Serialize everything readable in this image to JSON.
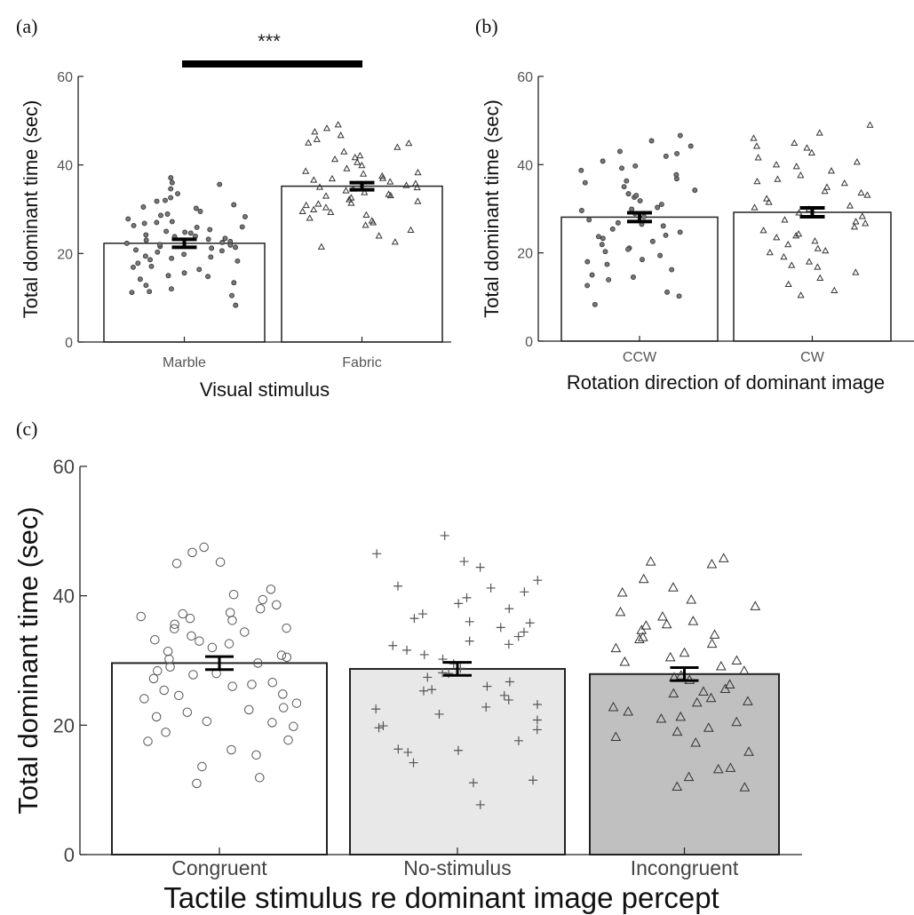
{
  "chart_data": [
    {
      "panel_label": "(a)",
      "type": "bar",
      "categories": [
        "Marble",
        "Fabric"
      ],
      "values": [
        22.3,
        35.2
      ],
      "errors": [
        0.9,
        0.8
      ],
      "xlabel": "Visual stimulus",
      "ylabel": "Total dominant time (sec)",
      "ylim": [
        0,
        60
      ],
      "yticks": [
        0,
        20,
        40,
        60
      ],
      "significance": "***",
      "bar_colors": [
        "#ffffff",
        "#ffffff"
      ],
      "markers": [
        "dot",
        "triangle"
      ],
      "points": [
        [
          10.5,
          8.3,
          11.2,
          12.0,
          13.4,
          14.2,
          15.0,
          15.6,
          16.4,
          17.1,
          17.8,
          18.3,
          18.9,
          19.4,
          19.8,
          20.3,
          20.8,
          21.2,
          21.6,
          22.0,
          22.3,
          22.7,
          23.0,
          23.4,
          23.8,
          24.2,
          24.6,
          25.0,
          25.4,
          25.9,
          26.3,
          26.8,
          27.2,
          27.8,
          28.3,
          28.9,
          29.5,
          30.2,
          31.0,
          31.8,
          32.6,
          33.5,
          34.6,
          35.6,
          36.0,
          37.1,
          11.4,
          12.8,
          14.8,
          16.9,
          18.6,
          19.2,
          20.6,
          21.4,
          21.9,
          22.5,
          23.2,
          23.9,
          24.8,
          26.0,
          27.0,
          28.6,
          30.5,
          32.0
        ],
        [
          21.5,
          22.6,
          24.0,
          25.3,
          26.4,
          27.4,
          28.0,
          28.7,
          29.3,
          29.9,
          30.4,
          30.9,
          31.4,
          31.8,
          32.2,
          32.6,
          33.0,
          33.4,
          33.8,
          34.2,
          34.6,
          35.0,
          35.4,
          35.8,
          36.2,
          36.6,
          37.0,
          37.5,
          38.0,
          38.6,
          39.2,
          39.9,
          40.6,
          41.3,
          42.1,
          43.0,
          44.0,
          44.9,
          45.8,
          46.7,
          47.5,
          48.3,
          49.1,
          27.0,
          29.5,
          31.2,
          33.1,
          34.9,
          36.9,
          38.3,
          41.7,
          45.0
        ]
      ]
    },
    {
      "panel_label": "(b)",
      "type": "bar",
      "categories": [
        "CCW",
        "CW"
      ],
      "values": [
        28.1,
        29.2
      ],
      "errors": [
        1.0,
        1.0
      ],
      "xlabel": "Rotation direction of dominant image",
      "ylabel": "Total dominant time (sec)",
      "ylim": [
        0,
        60
      ],
      "yticks": [
        0,
        20,
        40,
        60
      ],
      "bar_colors": [
        "#ffffff",
        "#ffffff"
      ],
      "markers": [
        "dot",
        "triangle"
      ],
      "points": [
        [
          8.3,
          10.2,
          11.1,
          12.6,
          13.9,
          15.0,
          16.2,
          17.4,
          18.5,
          19.4,
          20.3,
          21.1,
          21.9,
          22.6,
          23.3,
          24.0,
          24.7,
          25.4,
          26.1,
          26.8,
          27.5,
          28.2,
          28.9,
          29.6,
          30.3,
          31.0,
          31.8,
          32.6,
          33.4,
          34.2,
          35.0,
          35.9,
          36.8,
          37.7,
          38.7,
          39.7,
          40.8,
          41.9,
          43.0,
          44.2,
          45.4,
          46.6,
          14.5,
          18.0,
          20.8,
          23.7,
          26.5,
          29.9,
          33.0,
          36.3,
          39.2,
          42.5
        ],
        [
          10.4,
          11.5,
          12.9,
          14.3,
          15.6,
          16.8,
          18.0,
          19.1,
          20.1,
          21.0,
          21.9,
          22.7,
          23.5,
          24.3,
          25.1,
          25.9,
          26.7,
          27.5,
          28.3,
          29.1,
          29.9,
          30.7,
          31.5,
          32.3,
          33.1,
          34.0,
          34.9,
          35.8,
          36.7,
          37.6,
          38.6,
          39.6,
          40.6,
          41.6,
          42.7,
          43.8,
          44.9,
          46.0,
          47.2,
          49.0,
          17.2,
          20.5,
          23.9,
          27.1,
          30.3,
          33.6,
          36.2,
          40.0,
          44.2
        ]
      ]
    },
    {
      "panel_label": "(c)",
      "type": "bar",
      "categories": [
        "Congruent",
        "No-stimulus",
        "Incongruent"
      ],
      "values": [
        29.6,
        28.7,
        27.9
      ],
      "errors": [
        1.0,
        1.0,
        1.0
      ],
      "xlabel": "Tactile stimulus re dominant image percept",
      "ylabel": "Total dominant time (sec)",
      "ylim": [
        0,
        60
      ],
      "yticks": [
        0,
        20,
        40,
        60
      ],
      "bar_colors": [
        "#ffffff",
        "#e8e8e8",
        "#c0c0c0"
      ],
      "markers": [
        "circle",
        "plus",
        "triangle"
      ],
      "points": [
        [
          11.0,
          11.9,
          13.6,
          15.4,
          16.2,
          17.5,
          18.9,
          19.8,
          20.6,
          21.3,
          22.0,
          22.7,
          23.4,
          24.1,
          24.8,
          25.4,
          26.0,
          26.6,
          27.2,
          27.8,
          28.4,
          29.0,
          29.6,
          30.2,
          30.8,
          31.4,
          32.0,
          32.6,
          33.2,
          33.8,
          34.4,
          35.0,
          35.6,
          36.2,
          36.8,
          37.4,
          38.0,
          38.6,
          39.4,
          40.2,
          41.0,
          45.0,
          45.2,
          46.7,
          47.5,
          17.7,
          20.4,
          22.4,
          24.6,
          26.3,
          28.0,
          30.5,
          33.0,
          34.9,
          36.5,
          37.2
        ],
        [
          7.7,
          11.1,
          11.5,
          14.2,
          15.8,
          16.1,
          17.6,
          19.3,
          19.9,
          20.8,
          21.7,
          22.5,
          23.2,
          23.9,
          24.6,
          25.3,
          26.0,
          26.7,
          27.4,
          28.1,
          28.8,
          29.5,
          30.2,
          30.9,
          31.6,
          32.3,
          33.0,
          33.7,
          34.4,
          35.1,
          35.8,
          36.5,
          37.2,
          38.0,
          38.8,
          39.7,
          40.6,
          41.5,
          42.4,
          44.4,
          45.3,
          46.5,
          49.3,
          16.3,
          19.6,
          22.8,
          25.5,
          28.0,
          32.5,
          36.0,
          41.2
        ],
        [
          10.4,
          10.5,
          12.0,
          13.2,
          13.4,
          15.9,
          17.3,
          18.2,
          19.6,
          20.5,
          21.3,
          22.1,
          22.8,
          23.5,
          24.2,
          24.9,
          25.6,
          26.3,
          27.0,
          27.7,
          28.4,
          29.1,
          29.8,
          30.5,
          31.2,
          31.9,
          32.6,
          33.3,
          34.0,
          34.7,
          35.4,
          36.1,
          36.8,
          37.5,
          38.4,
          39.4,
          40.5,
          41.3,
          42.6,
          44.9,
          45.3,
          45.8,
          21.0,
          23.7,
          25.2,
          27.4,
          30.0,
          33.6,
          35.6,
          19.0
        ]
      ]
    }
  ]
}
